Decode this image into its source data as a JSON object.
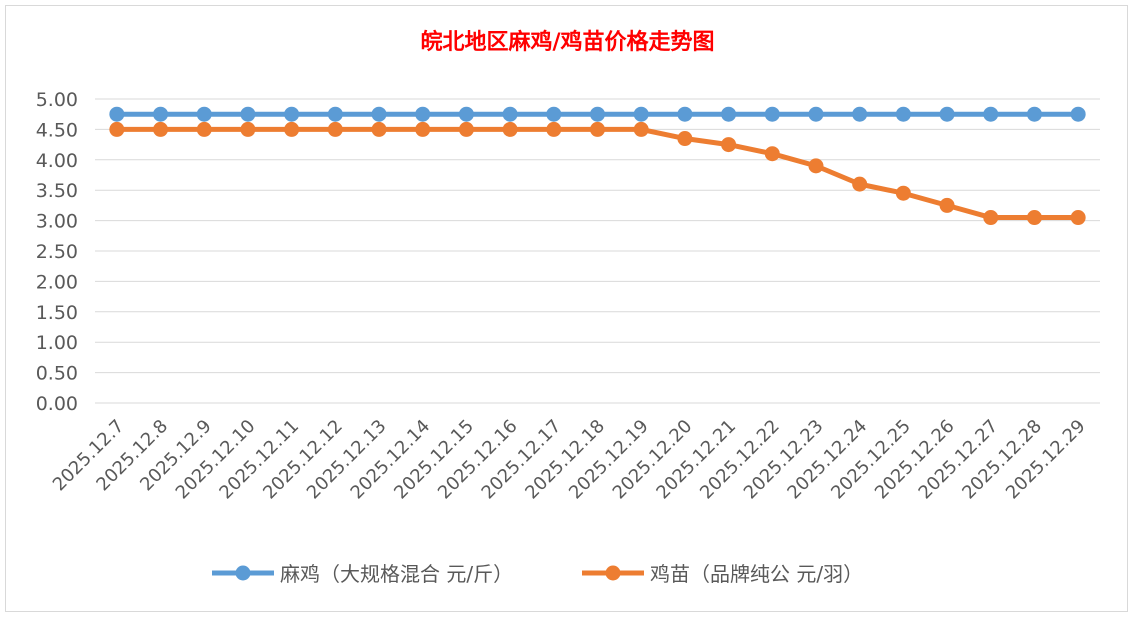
{
  "chart_data": {
    "type": "line",
    "title": "皖北地区麻鸡/鸡苗价格走势图",
    "xlabel": "",
    "ylabel": "",
    "ylim": [
      0,
      5
    ],
    "yticks": [
      "0.00",
      "0.50",
      "1.00",
      "1.50",
      "2.00",
      "2.50",
      "3.00",
      "3.50",
      "4.00",
      "4.50",
      "5.00"
    ],
    "grid": true,
    "legend_position": "bottom",
    "categories": [
      "2025.12.7",
      "2025.12.8",
      "2025.12.9",
      "2025.12.10",
      "2025.12.11",
      "2025.12.12",
      "2025.12.13",
      "2025.12.14",
      "2025.12.15",
      "2025.12.16",
      "2025.12.17",
      "2025.12.18",
      "2025.12.19",
      "2025.12.20",
      "2025.12.21",
      "2025.12.22",
      "2025.12.23",
      "2025.12.24",
      "2025.12.25",
      "2025.12.26",
      "2025.12.27",
      "2025.12.28",
      "2025.12.29"
    ],
    "series": [
      {
        "name": "麻鸡（大规格混合 元/斤）",
        "color": "#5b9bd5",
        "values": [
          4.75,
          4.75,
          4.75,
          4.75,
          4.75,
          4.75,
          4.75,
          4.75,
          4.75,
          4.75,
          4.75,
          4.75,
          4.75,
          4.75,
          4.75,
          4.75,
          4.75,
          4.75,
          4.75,
          4.75,
          4.75,
          4.75,
          4.75
        ]
      },
      {
        "name": "鸡苗（品牌纯公 元/羽）",
        "color": "#ed7d31",
        "values": [
          4.5,
          4.5,
          4.5,
          4.5,
          4.5,
          4.5,
          4.5,
          4.5,
          4.5,
          4.5,
          4.5,
          4.5,
          4.5,
          4.35,
          4.25,
          4.1,
          3.9,
          3.6,
          3.45,
          3.25,
          3.05,
          3.05,
          3.05
        ]
      }
    ]
  }
}
